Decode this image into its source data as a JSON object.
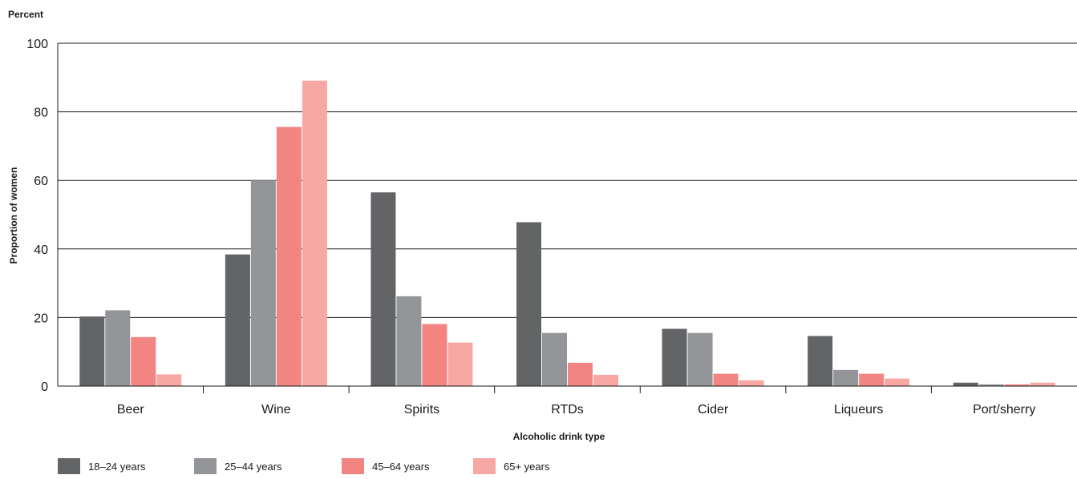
{
  "chart_data": {
    "type": "bar",
    "unit_label": "Percent",
    "ylabel": "Proportion of women",
    "xlabel": "Alcoholic drink type",
    "ylim": [
      0,
      100
    ],
    "yticks": [
      "0",
      "20",
      "40",
      "60",
      "80",
      "100"
    ],
    "ytick_values": [
      0,
      20,
      40,
      60,
      80,
      100
    ],
    "grid": true,
    "legend_position": "bottom-left",
    "categories": [
      "Beer",
      "Wine",
      "Spirits",
      "RTDs",
      "Cider",
      "Liqueurs",
      "Port/sherry"
    ],
    "series": [
      {
        "name": "18–24 years",
        "color": "#636466",
        "values": [
          20.3,
          38.4,
          56.5,
          47.8,
          16.7,
          14.6,
          1.0
        ]
      },
      {
        "name": "25–44 years",
        "color": "#939598",
        "values": [
          22.1,
          60.0,
          26.2,
          15.5,
          15.5,
          4.7,
          0.5
        ]
      },
      {
        "name": "45–64 years",
        "color": "#f28482",
        "values": [
          14.3,
          75.6,
          18.1,
          6.8,
          3.6,
          3.6,
          0.5
        ]
      },
      {
        "name": "65+ years",
        "color": "#f8a8a4",
        "values": [
          3.4,
          89.1,
          12.7,
          3.3,
          1.7,
          2.2,
          1.0
        ]
      }
    ]
  }
}
